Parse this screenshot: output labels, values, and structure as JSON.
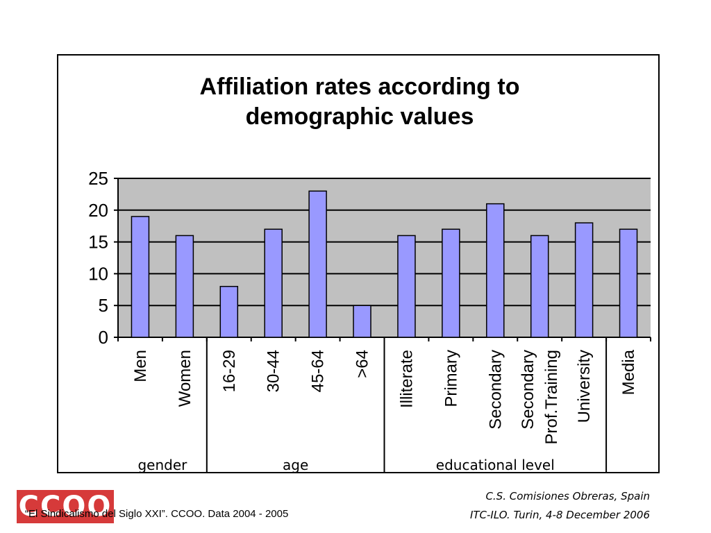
{
  "footer": {
    "source": "“El Sindicalismo del Siglo XXI”. CCOO. Data 2004 - 2005",
    "org": "C.S. Comisiones Obreras, Spain",
    "event": "ITC-ILO. Turin, 4-8 December 2006"
  },
  "logo": {
    "text": "CCOO",
    "color": "#d63a3a"
  },
  "chart_data": {
    "type": "bar",
    "title": [
      "Affiliation rates according to",
      "demographic values"
    ],
    "categories": [
      [
        "Men"
      ],
      [
        "Women"
      ],
      [
        "16-29"
      ],
      [
        "30-44"
      ],
      [
        "45-64"
      ],
      [
        ">64"
      ],
      [
        "Illiterate"
      ],
      [
        "Primary"
      ],
      [
        "Secondary"
      ],
      [
        "Secondary",
        "Prof.Training"
      ],
      [
        "University"
      ],
      [
        "Media"
      ]
    ],
    "values": [
      19,
      16,
      8,
      17,
      23,
      5,
      16,
      17,
      21,
      16,
      18,
      17
    ],
    "yticks": [
      "0",
      "5",
      "10",
      "15",
      "20",
      "25"
    ],
    "ylim": [
      0,
      25
    ],
    "groups": [
      {
        "label": "gender",
        "start": 0,
        "end": 1
      },
      {
        "label": "age",
        "start": 2,
        "end": 5
      },
      {
        "label": "educational level",
        "start": 6,
        "end": 10
      },
      {
        "label": "",
        "start": 11,
        "end": 11
      }
    ],
    "grid": true,
    "colors": {
      "bar": "#9999ff",
      "plot_bg": "#c0c0c0",
      "grid": "#000000"
    }
  }
}
